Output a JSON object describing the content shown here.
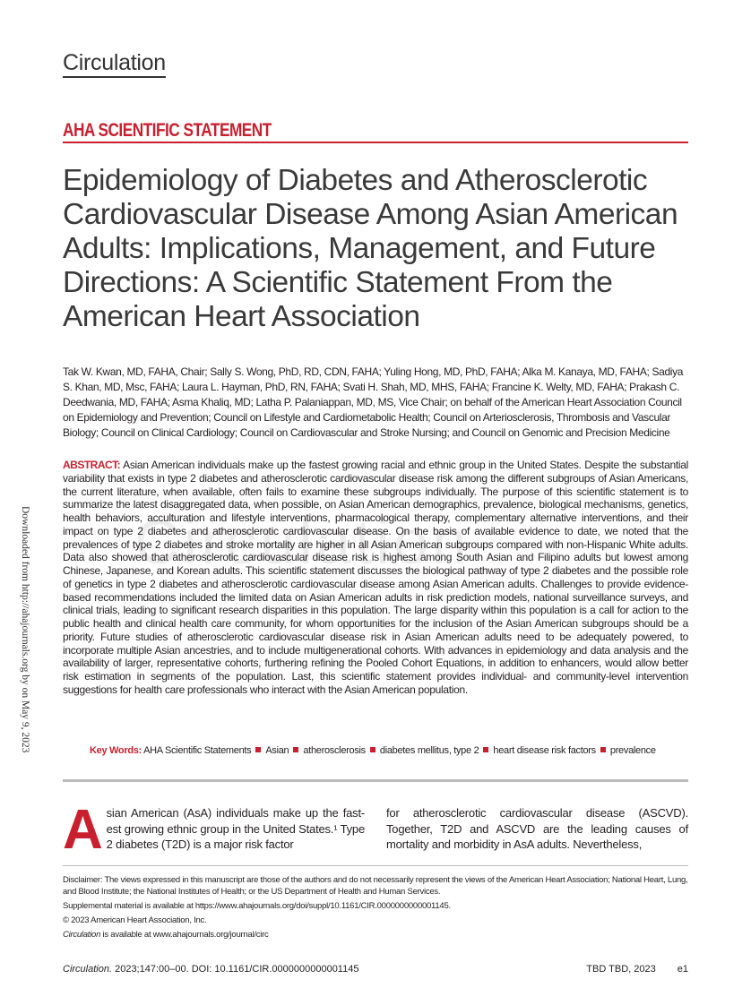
{
  "journal": "Circulation",
  "section": "AHA SCIENTIFIC STATEMENT",
  "title": "Epidemiology of Diabetes and Atherosclerotic Cardiovascular Disease Among Asian American Adults: Implications, Management, and Future Directions: A Scientific Statement From the American Heart Association",
  "authors": "Tak W. Kwan, MD, FAHA, Chair; Sally S. Wong, PhD, RD, CDN, FAHA; Yuling Hong, MD, PhD, FAHA; Alka M. Kanaya, MD, FAHA; Sadiya S. Khan, MD, Msc, FAHA; Laura L. Hayman, PhD, RN, FAHA; Svati H. Shah, MD, MHS, FAHA; Francine K. Welty, MD, FAHA; Prakash C. Deedwania, MD, FAHA; Asma Khaliq, MD; Latha P. Palaniappan, MD, MS, Vice Chair; on behalf of the American Heart Association Council on Epidemiology and Prevention; Council on Lifestyle and Cardiometabolic Health; Council on Arteriosclerosis, Thrombosis and Vascular Biology; Council on Clinical Cardiology; Council on Cardiovascular and Stroke Nursing; and Council on Genomic and Precision Medicine",
  "abstract": {
    "label": "ABSTRACT:",
    "text": "Asian American individuals make up the fastest growing racial and ethnic group in the United States. Despite the substantial variability that exists in type 2 diabetes and atherosclerotic cardiovascular disease risk among the different subgroups of Asian Americans, the current literature, when available, often fails to examine these subgroups individually. The purpose of this scientific statement is to summarize the latest disaggregated data, when possible, on Asian American demographics, prevalence, biological mechanisms, genetics, health behaviors, acculturation and lifestyle interventions, pharmacological therapy, complementary alternative interventions, and their impact on type 2 diabetes and atherosclerotic cardiovascular disease. On the basis of available evidence to date, we noted that the prevalences of type 2 diabetes and stroke mortality are higher in all Asian American subgroups compared with non-Hispanic White adults. Data also showed that atherosclerotic cardiovascular disease risk is highest among South Asian and Filipino adults but lowest among Chinese, Japanese, and Korean adults. This scientific statement discusses the biological pathway of type 2 diabetes and the possible role of genetics in type 2 diabetes and atherosclerotic cardiovascular disease among Asian American adults. Challenges to provide evidence-based recommendations included the limited data on Asian American adults in risk prediction models, national surveillance surveys, and clinical trials, leading to significant research disparities in this population. The large disparity within this population is a call for action to the public health and clinical health care community, for whom opportunities for the inclusion of the Asian American subgroups should be a priority. Future studies of atherosclerotic cardiovascular disease risk in Asian American adults need to be adequately powered, to incorporate multiple Asian ancestries, and to include multigenerational cohorts. With advances in epidemiology and data analysis and the availability of larger, representative cohorts, furthering refining the Pooled Cohort Equations, in addition to enhancers, would allow better risk estimation in segments of the population. Last, this scientific statement provides individual- and community-level intervention suggestions for health care professionals who interact with the Asian American population."
  },
  "watermark": "Circulation",
  "side_note": "Downloaded from http://ahajournals.org by on May 9, 2023",
  "keywords": {
    "label": "Key Words:",
    "items": [
      "AHA Scientific Statements",
      "Asian",
      "atherosclerosis",
      "diabetes mellitus, type 2",
      "heart disease risk factors",
      "prevalence"
    ]
  },
  "body": {
    "dropcap": "A",
    "col1": "sian American (AsA) individuals make up the fast-est growing ethnic group in the United States.¹ Type 2 diabetes (T2D) is a major risk factor",
    "col2": "for atherosclerotic cardiovascular disease (ASCVD). Together, T2D and ASCVD are the leading causes of mortality and morbidity in AsA adults. Nevertheless,"
  },
  "notes": {
    "disclaimer": "Disclaimer: The views expressed in this manuscript are those of the authors and do not necessarily represent the views of the American Heart Association; National Heart, Lung, and Blood Institute; the National Institutes of Health; or the US Department of Health and Human Services.",
    "supplemental": "Supplemental material is available at https://www.ahajournals.org/doi/suppl/10.1161/CIR.0000000000001145.",
    "copyright": "© 2023 American Heart Association, Inc.",
    "availability_journal": "Circulation",
    "availability_text": " is available at www.ahajournals.org/journal/circ"
  },
  "footer": {
    "journal": "Circulation.",
    "citation": " 2023;147:00–00. DOI: 10.1161/CIR.0000000000001145",
    "date": "TBD TBD, 2023",
    "page": "e1"
  }
}
